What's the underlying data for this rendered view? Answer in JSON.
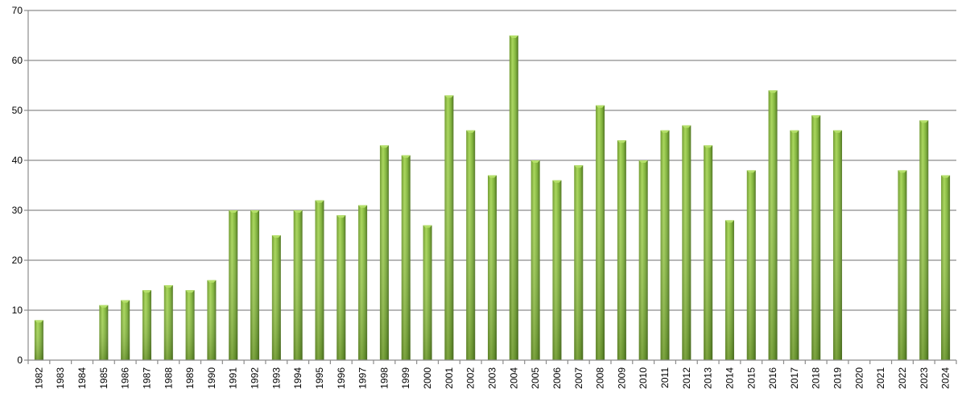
{
  "chart_data": {
    "type": "bar",
    "title": "",
    "xlabel": "",
    "ylabel": "",
    "ylim": [
      0,
      70
    ],
    "yticks": [
      0,
      10,
      20,
      30,
      40,
      50,
      60,
      70
    ],
    "grid": true,
    "categories": [
      "1982",
      "1983",
      "1984",
      "1985",
      "1986",
      "1987",
      "1988",
      "1989",
      "1990",
      "1991",
      "1992",
      "1993",
      "1994",
      "1995",
      "1996",
      "1997",
      "1998",
      "1999",
      "2000",
      "2001",
      "2002",
      "2003",
      "2004",
      "2005",
      "2006",
      "2007",
      "2008",
      "2009",
      "2010",
      "2011",
      "2012",
      "2013",
      "2014",
      "2015",
      "2016",
      "2017",
      "2018",
      "2019",
      "2020",
      "2021",
      "2022",
      "2023",
      "2024"
    ],
    "values": [
      8,
      0,
      0,
      11,
      12,
      14,
      15,
      14,
      16,
      30,
      30,
      25,
      30,
      32,
      29,
      31,
      43,
      41,
      27,
      53,
      46,
      37,
      65,
      40,
      36,
      39,
      51,
      44,
      40,
      46,
      47,
      43,
      28,
      38,
      54,
      46,
      49,
      46,
      0,
      0,
      38,
      48,
      37
    ],
    "colors": {
      "bar_top": "#b5e06a",
      "bar_mid": "#8bc34a",
      "bar_dark": "#4a6e1c",
      "grid": "#8c8c8c"
    }
  }
}
